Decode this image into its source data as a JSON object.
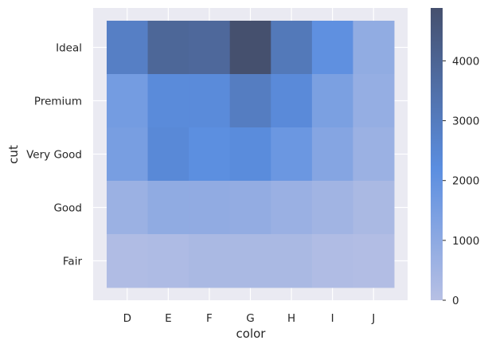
{
  "chart_data": {
    "type": "heatmap",
    "xlabel": "color",
    "ylabel": "cut",
    "x_categories": [
      "D",
      "E",
      "F",
      "G",
      "H",
      "I",
      "J"
    ],
    "y_categories": [
      "Ideal",
      "Premium",
      "Very Good",
      "Good",
      "Fair"
    ],
    "values": [
      [
        2834,
        3903,
        3826,
        4884,
        3115,
        2093,
        896
      ],
      [
        1603,
        2337,
        2331,
        2924,
        2360,
        1428,
        808
      ],
      [
        1513,
        2400,
        2164,
        2299,
        1824,
        1204,
        678
      ],
      [
        662,
        933,
        909,
        871,
        702,
        522,
        307
      ],
      [
        163,
        224,
        312,
        314,
        303,
        175,
        119
      ]
    ],
    "colorbar": {
      "ticks": [
        0,
        1000,
        2000,
        3000,
        4000
      ],
      "tick_labels": [
        "0",
        "1000",
        "2000",
        "3000",
        "4000"
      ],
      "max": 4884,
      "colors": [
        "#b7c0e4",
        "#5b8ee0",
        "#45506e"
      ]
    },
    "grid": true,
    "background": "#eaeaf2"
  }
}
